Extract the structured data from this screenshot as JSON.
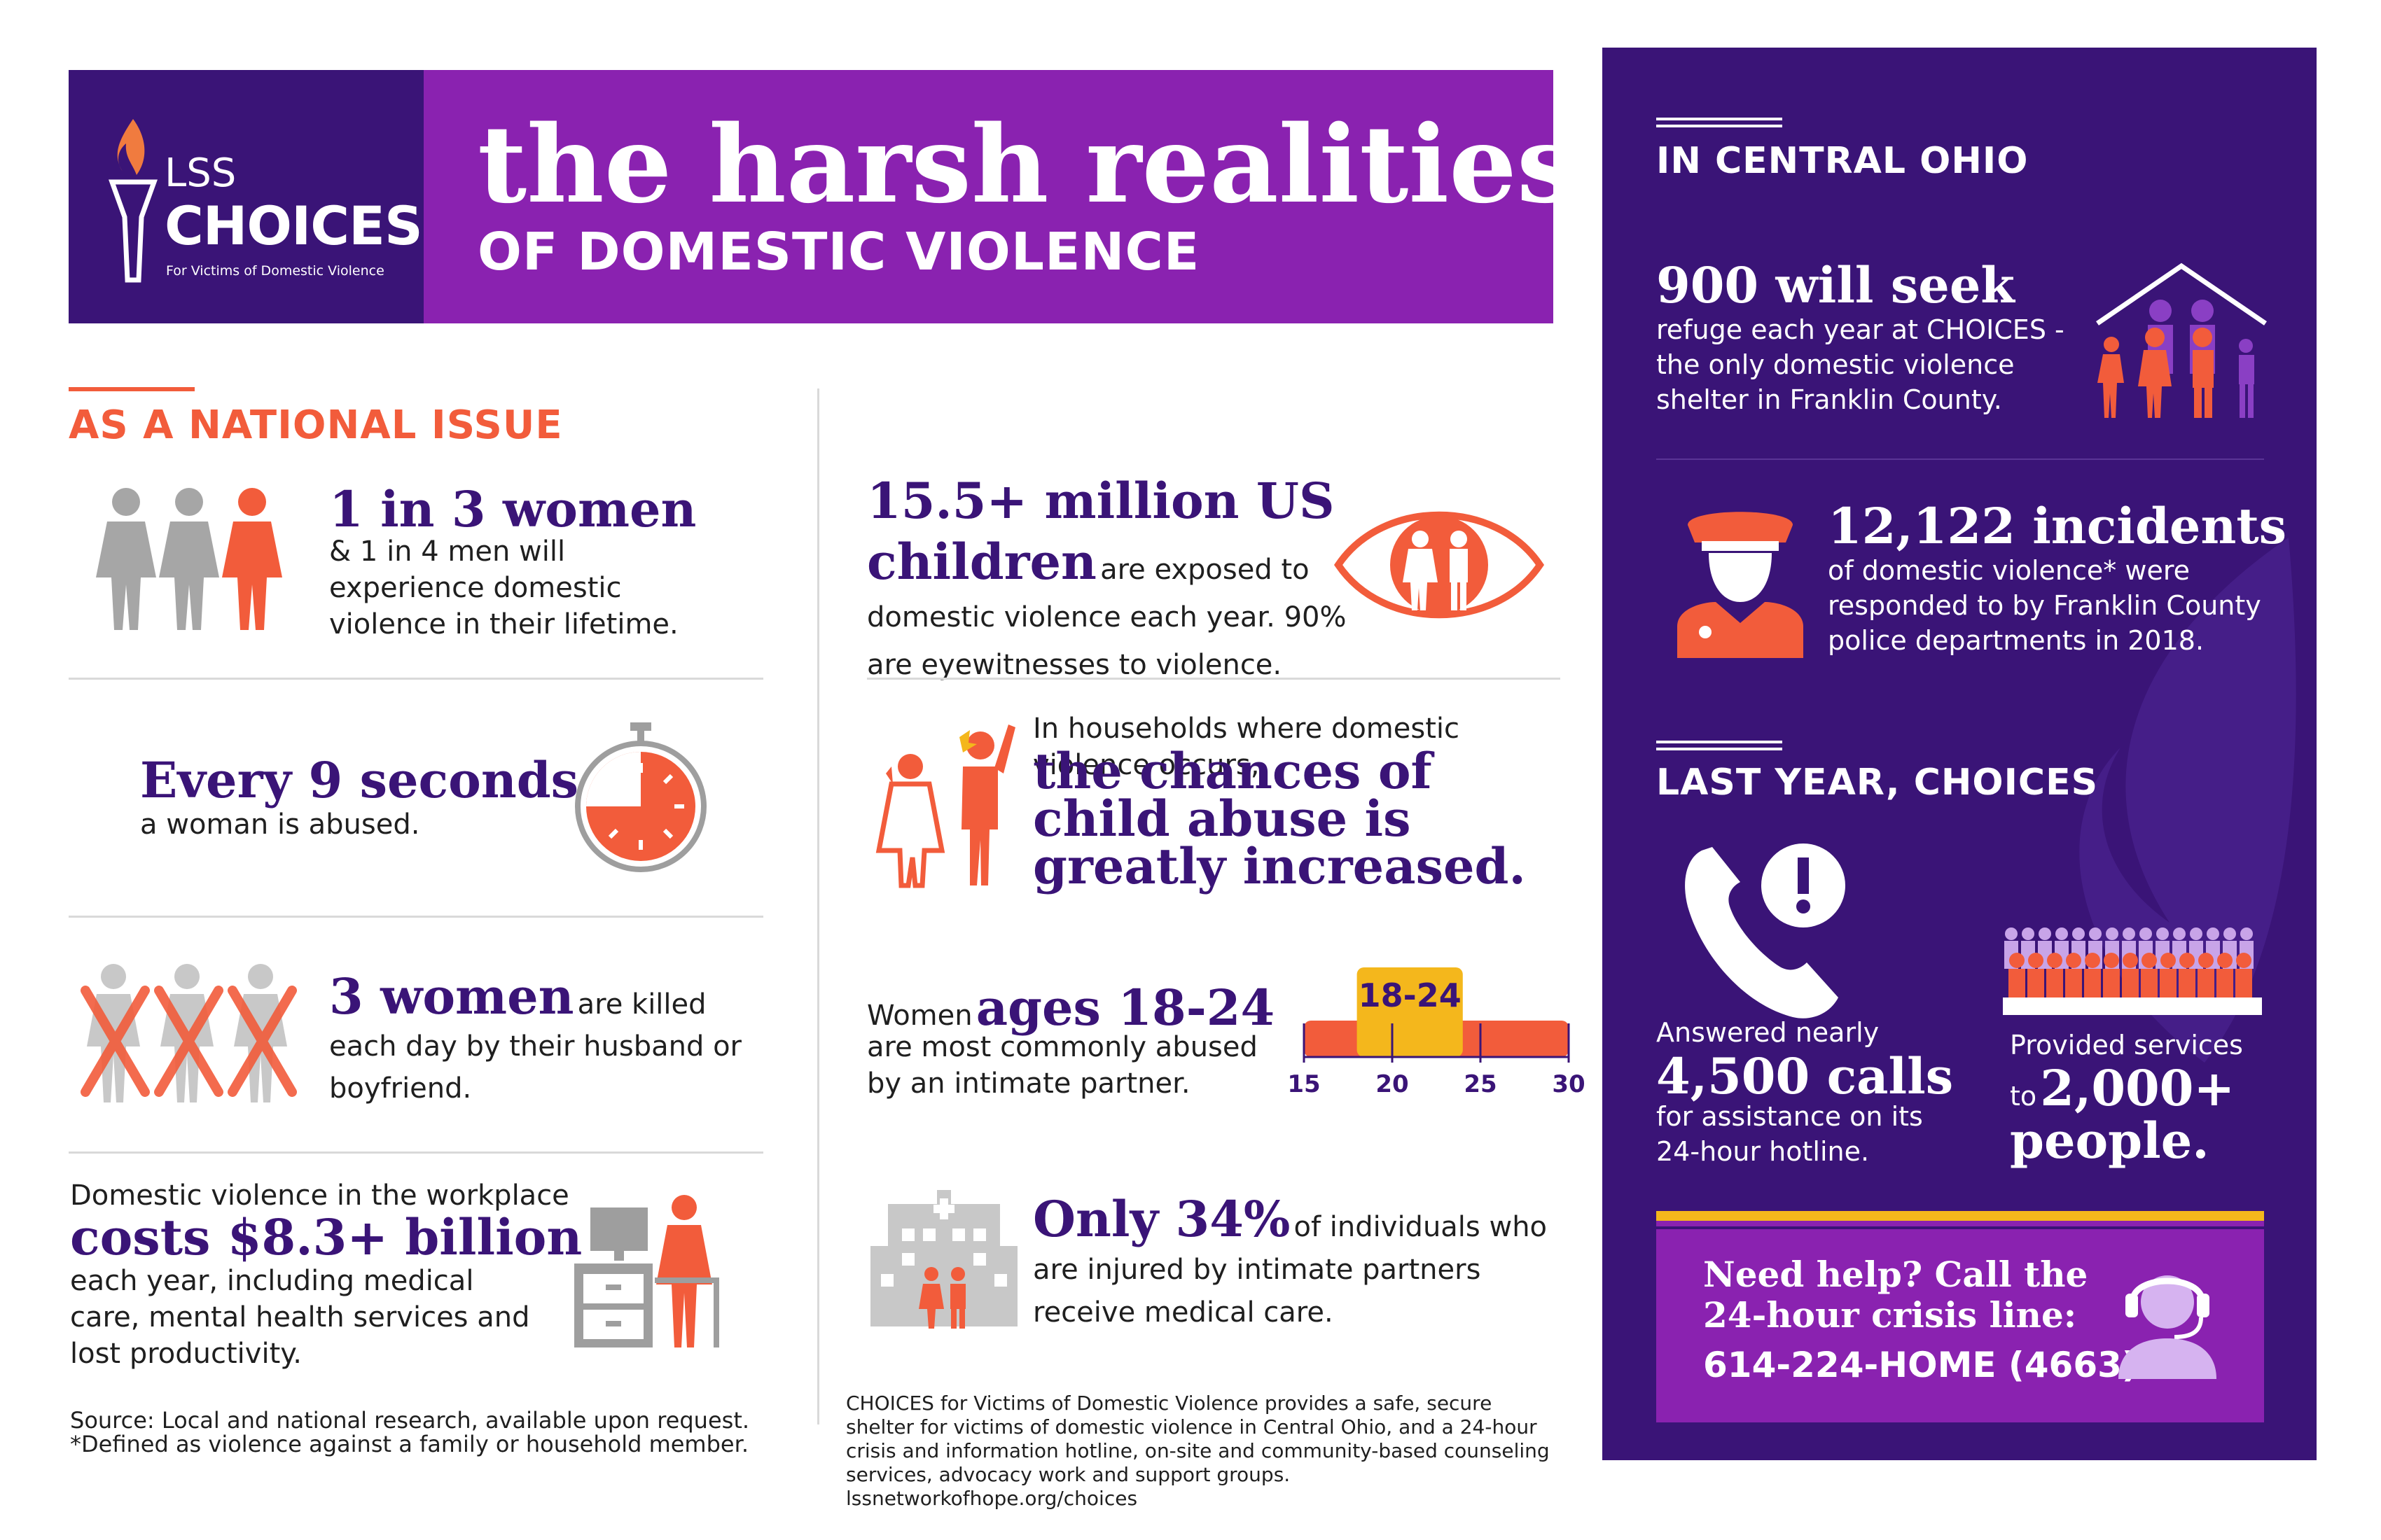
{
  "header": {
    "title": "the harsh realities",
    "subtitle": "OF DOMESTIC VIOLENCE",
    "logo_small": "LSS",
    "logo_big": "CHOICES",
    "logo_tagline": "For Victims of Domestic Violence"
  },
  "national": {
    "heading": "AS A NATIONAL ISSUE",
    "stat1_big": "1 in 3 women",
    "stat1_text": "& 1 in 4 men will experience domestic violence in their lifetime.",
    "stat2_big": "Every 9 seconds,",
    "stat2_text": "a woman is abused.",
    "stat3_big": "3 women",
    "stat3_text": "are killed each day by their husband or boyfriend.",
    "stat4_pre": "Domestic violence in the workplace",
    "stat4_big": "costs $8.3+ billion",
    "stat4_text": "each year, including medical care, mental health services and lost productivity.",
    "source_line1": "Source: Local and national research, available upon request.",
    "source_line2": "*Defined as violence against a family or household member."
  },
  "middle": {
    "stat1_big": "15.5+ million US children",
    "stat1_text": "are exposed to domestic violence each year. 90% are eyewitnesses to violence.",
    "stat2_pre": "In households where domestic violence occurs,",
    "stat2_big": "the chances of child abuse is greatly increased.",
    "stat3_pre": "Women",
    "stat3_big": "ages 18-24",
    "stat3_text": "are most commonly abused by an intimate partner.",
    "age_range_label": "18-24",
    "age_ticks": [
      "15",
      "20",
      "25",
      "30"
    ],
    "age_scale": {
      "min": 15,
      "max": 30,
      "highlight": [
        18,
        24
      ]
    },
    "stat4_big": "Only 34%",
    "stat4_text": "of individuals who are injured by intimate partners receive medical care.",
    "footer": "CHOICES for Victims of Domestic Violence provides a safe, secure shelter for victims of domestic violence in Central Ohio, and a 24-hour crisis and information hotline, on-site and community-based counseling services, advocacy work and support groups.   lssnetworkofhope.org/choices"
  },
  "central_ohio": {
    "heading": "IN CENTRAL OHIO",
    "stat1_big": "900 will seek",
    "stat1_text": "refuge each year at CHOICES - the only domestic violence shelter in Franklin County.",
    "stat2_big": "12,122 incidents",
    "stat2_text": "of domestic violence* were responded to by Franklin County police departments in 2018."
  },
  "last_year": {
    "heading": "LAST YEAR, CHOICES",
    "calls_pre": "Answered nearly",
    "calls_big": "4,500 calls",
    "calls_text": "for assistance on its 24-hour hotline.",
    "people_pre": "Provided services",
    "people_to": "to",
    "people_big": "2,000+",
    "people_big2": "people."
  },
  "help": {
    "line1": "Need help? Call the",
    "line2": "24-hour crisis line:",
    "phone": "614-224-HOME (4663)"
  },
  "colors": {
    "purple_dark": "#3a1477",
    "purple": "#8a22b0",
    "orange": "#f25c3b",
    "gray": "#a6a6a6",
    "yellow": "#f4b71c"
  }
}
